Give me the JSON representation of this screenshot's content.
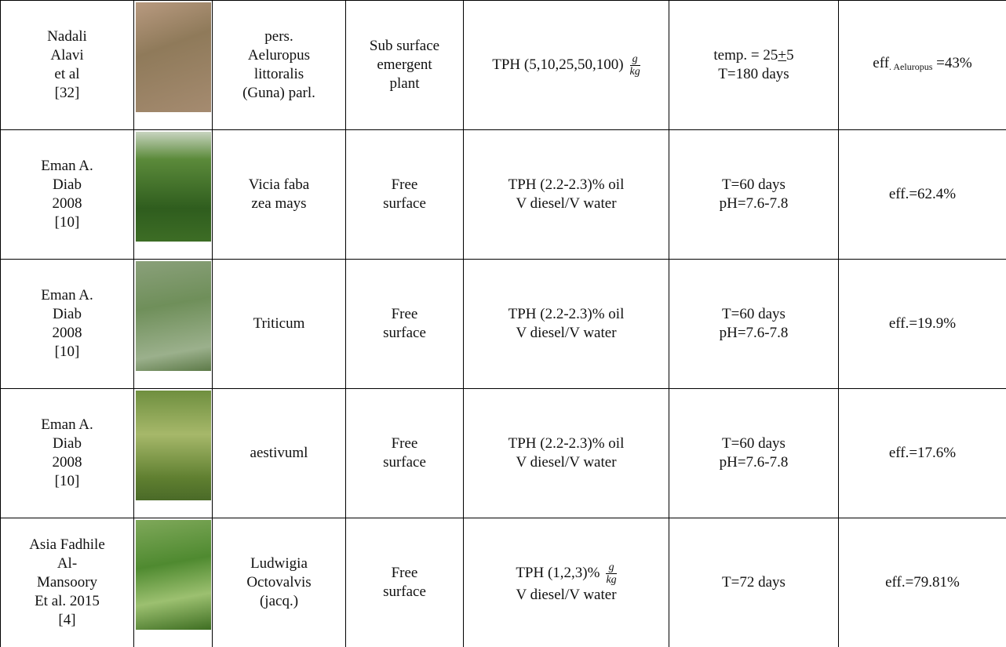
{
  "table": {
    "rows": [
      {
        "author": [
          "Nadali",
          "Alavi",
          "et al",
          "[32]"
        ],
        "plant": [
          "pers.",
          "Aeluropus",
          "littoralis",
          "(Guna) parl."
        ],
        "system": [
          "Sub surface",
          "emergent",
          "plant"
        ],
        "concentration": [
          [
            {
              "text": "TPH (5,10,25,50,100)"
            },
            {
              "num": "g",
              "den": "kg"
            }
          ]
        ],
        "conditions": [
          [
            {
              "text": "temp. = 25"
            },
            {
              "u": "+"
            },
            {
              "text": "5"
            }
          ],
          "T=180  days"
        ],
        "efficiency": [
          [
            {
              "text": "eff"
            },
            {
              "sub": ". Aeluropus"
            },
            {
              "text": " =43%"
            }
          ]
        ]
      },
      {
        "author": [
          "Eman A.",
          "Diab",
          "2008",
          "[10]"
        ],
        "plant": [
          "Vicia faba",
          "zea mays"
        ],
        "system": [
          "Free",
          "surface"
        ],
        "concentration": [
          "TPH (2.2-2.3)%  oil",
          "V diesel/V water"
        ],
        "conditions": [
          "T=60 days",
          "pH=7.6-7.8"
        ],
        "efficiency": [
          "eff.=62.4%"
        ]
      },
      {
        "author": [
          "Eman A.",
          "Diab",
          "2008",
          "[10]"
        ],
        "plant": [
          "Triticum"
        ],
        "system": [
          "Free",
          "surface"
        ],
        "concentration": [
          "TPH (2.2-2.3)%  oil",
          "V diesel/V water"
        ],
        "conditions": [
          "T=60 days",
          "pH=7.6-7.8"
        ],
        "efficiency": [
          "eff.=19.9%"
        ]
      },
      {
        "author": [
          "Eman A.",
          "Diab",
          "2008",
          "[10]"
        ],
        "plant": [
          "aestivuml"
        ],
        "system": [
          "Free",
          "surface"
        ],
        "concentration": [
          "TPH (2.2-2.3)%  oil",
          "V diesel/V water"
        ],
        "conditions": [
          "T=60 days",
          "pH=7.6-7.8"
        ],
        "efficiency": [
          "eff.=17.6%"
        ]
      },
      {
        "author": [
          "Asia Fadhile",
          "Al-",
          "Mansoory",
          "Et al. 2015",
          "[4]"
        ],
        "plant": [
          "Ludwigia",
          "Octovalvis",
          "(jacq.)"
        ],
        "system": [
          "Free",
          "surface"
        ],
        "concentration": [
          [
            {
              "text": "TPH (1,2,3)%"
            },
            {
              "num": "g",
              "den": "kg"
            }
          ],
          "V diesel/V water"
        ],
        "conditions": [
          "T=72 days"
        ],
        "efficiency": [
          "eff.=79.81%"
        ]
      }
    ]
  }
}
